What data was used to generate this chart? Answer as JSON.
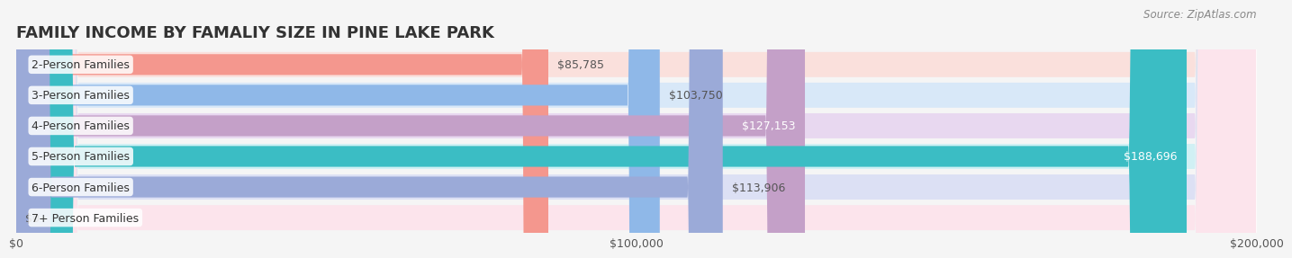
{
  "title": "FAMILY INCOME BY FAMALIY SIZE IN PINE LAKE PARK",
  "source": "Source: ZipAtlas.com",
  "categories": [
    "2-Person Families",
    "3-Person Families",
    "4-Person Families",
    "5-Person Families",
    "6-Person Families",
    "7+ Person Families"
  ],
  "values": [
    85785,
    103750,
    127153,
    188696,
    113906,
    0
  ],
  "bar_colors": [
    "#F4978E",
    "#8FB8E8",
    "#C4A0C8",
    "#3BBDC4",
    "#9BAAD8",
    "#F4A8B8"
  ],
  "bar_bg_colors": [
    "#FAE0DC",
    "#D8E8F8",
    "#E8D8F0",
    "#D0F0F4",
    "#DCE0F4",
    "#FCE4EC"
  ],
  "value_labels": [
    "$85,785",
    "$103,750",
    "$127,153",
    "$188,696",
    "$113,906",
    "$0"
  ],
  "xlim": [
    0,
    200000
  ],
  "xticks": [
    0,
    100000,
    200000
  ],
  "xticklabels": [
    "$0",
    "$100,000",
    "$200,000"
  ],
  "title_fontsize": 13,
  "label_fontsize": 9,
  "value_fontsize": 9,
  "bg_color": "#F5F5F5",
  "bar_bg_alpha": 1.0
}
